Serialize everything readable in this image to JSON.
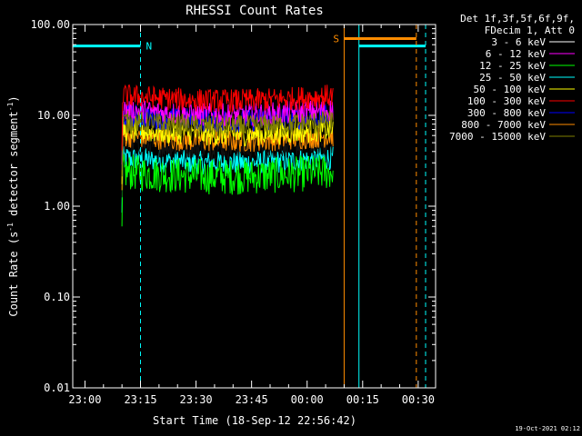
{
  "chart_data": {
    "type": "line",
    "title": "RHESSI Count Rates",
    "xlabel": "Start Time (18-Sep-12 22:56:42)",
    "ylabel_main": "Count Rate (s",
    "ylabel_sup": "-1",
    "ylabel_mid": " detector segment",
    "ylabel_end": ")",
    "y_scale": "log",
    "ylim": [
      0.01,
      100
    ],
    "xlim": [
      "22:56:42",
      "00:34:42"
    ],
    "x_ticks": [
      "23:00",
      "23:15",
      "23:30",
      "23:45",
      "00:00",
      "00:15",
      "00:30"
    ],
    "y_ticks": [
      "0.01",
      "0.10",
      "1.00",
      "10.00",
      "100.00"
    ],
    "legend_header": [
      "Det 1f,3f,5f,6f,9f,",
      "FDecim 1, Att 0"
    ],
    "legend_placement": "top-right outside plot",
    "series": [
      {
        "name": "3 - 6 keV",
        "color": "#ffffff",
        "level": 5.0,
        "trace_color": "#000000"
      },
      {
        "name": "6 - 12 keV",
        "color": "#ff00ff",
        "level": 11.5
      },
      {
        "name": "12 - 25 keV",
        "color": "#00ff00",
        "level": 2.4
      },
      {
        "name": "25 - 50 keV",
        "color": "#00ffff",
        "level": 3.4
      },
      {
        "name": "50 - 100 keV",
        "color": "#ffff00",
        "level": 7.0
      },
      {
        "name": "100 - 300 keV",
        "color": "#ff0000",
        "level": 16.5
      },
      {
        "name": "300 - 800 keV",
        "color": "#0000ff",
        "level": 10.0
      },
      {
        "name": "800 - 7000 keV",
        "color": "#ff8c00",
        "level": 6.0
      },
      {
        "name": "7000 - 15000 keV",
        "color": "#808000",
        "level": 8.5
      }
    ],
    "data_interval": {
      "start": "23:10:00",
      "end": "00:07:00"
    },
    "annotations": [
      {
        "label": "N",
        "color": "#00ffff",
        "type": "night",
        "intervals": [
          [
            "22:56:42",
            "23:15:00"
          ],
          [
            "00:14:00",
            "00:32:00"
          ]
        ]
      },
      {
        "label": "S",
        "color": "#ff8c00",
        "type": "saa",
        "intervals": [
          [
            "00:10:00",
            "00:29:30"
          ]
        ]
      }
    ],
    "footer_date": "19-Oct-2021 02:12"
  }
}
